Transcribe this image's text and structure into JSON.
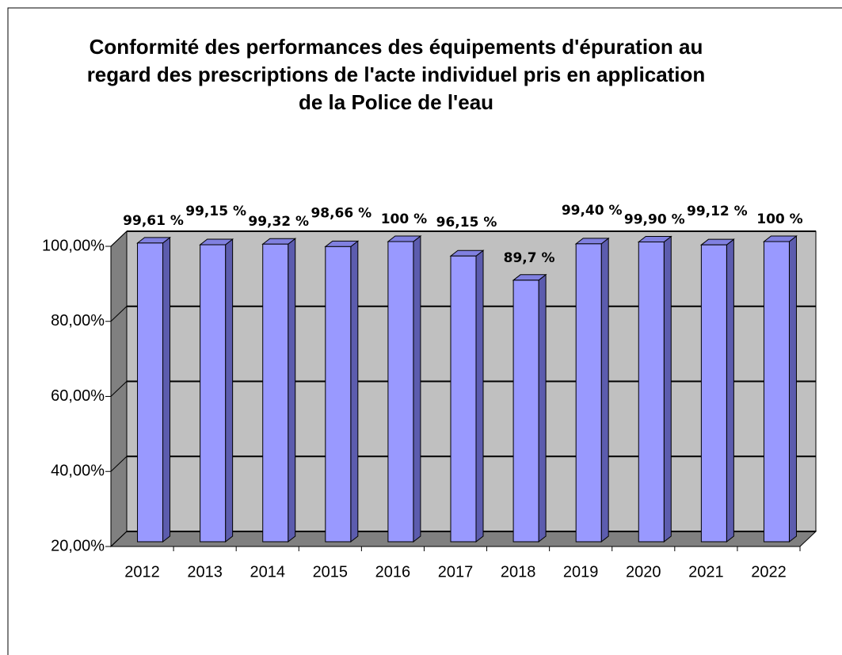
{
  "chart_data": {
    "type": "bar3d",
    "title": "Conformité des performances des équipements d'épuration au regard des prescriptions de l'acte individuel pris en application de la Police de l'eau",
    "categories": [
      "2012",
      "2013",
      "2014",
      "2015",
      "2016",
      "2017",
      "2018",
      "2019",
      "2020",
      "2021",
      "2022"
    ],
    "values": [
      99.61,
      99.15,
      99.32,
      98.66,
      100,
      96.15,
      89.7,
      99.4,
      99.9,
      99.12,
      100
    ],
    "value_labels": [
      "99,61 %",
      "99,15 %",
      "99,32 %",
      "98,66 %",
      "100 %",
      "96,15 %",
      "89,7 %",
      "99,40 %",
      "99,90 %",
      "99,12 %",
      "100 %"
    ],
    "color": "#9999ff",
    "ylim": [
      20,
      100
    ],
    "yticks": [
      {
        "value": 20,
        "label": "20,00%"
      },
      {
        "value": 40,
        "label": "40,00%"
      },
      {
        "value": 60,
        "label": "60,00%"
      },
      {
        "value": 80,
        "label": "80,00%"
      },
      {
        "value": 100,
        "label": "100,00%"
      }
    ],
    "grid": true
  }
}
